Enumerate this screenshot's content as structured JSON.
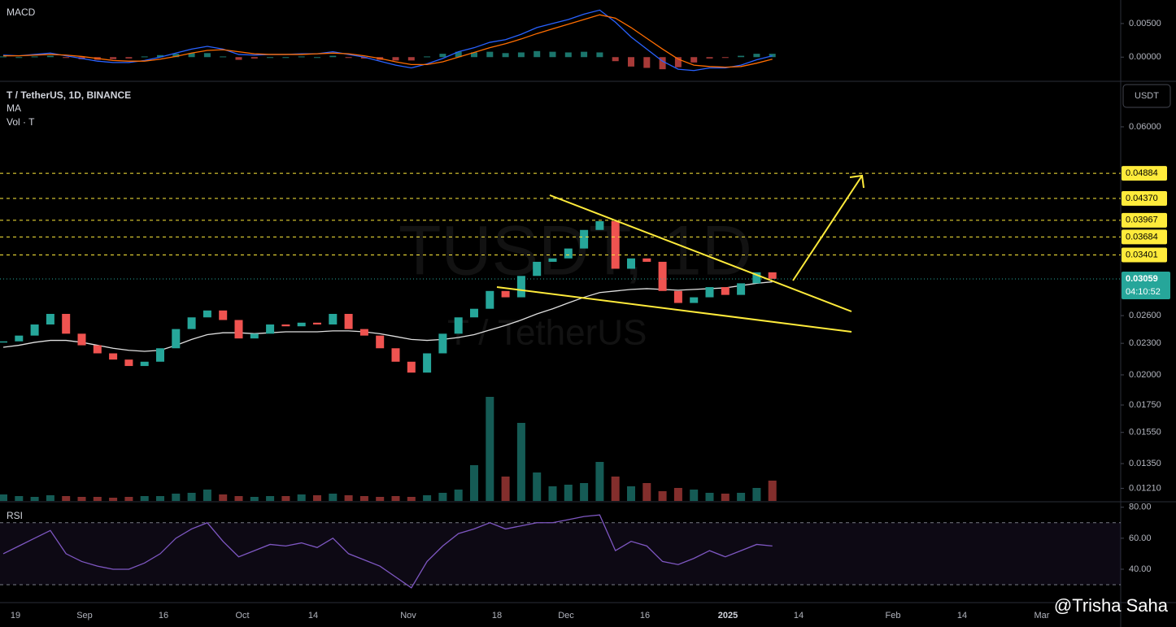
{
  "chart_data": [
    {
      "type": "macd",
      "title": "MACD",
      "macd": {
        "color": "#2962ff",
        "values": [
          0.0003,
          0.0002,
          0.0004,
          0.0006,
          0.0002,
          -0.0002,
          -0.0006,
          -0.0008,
          -0.0008,
          -0.0005,
          0.0,
          0.0006,
          0.0012,
          0.0016,
          0.0012,
          0.0004,
          0.0003,
          0.0004,
          0.0004,
          0.0005,
          0.0005,
          0.0008,
          0.0004,
          0.0,
          -0.0006,
          -0.0012,
          -0.0016,
          -0.001,
          -0.0002,
          0.0008,
          0.0014,
          0.0022,
          0.0026,
          0.0034,
          0.0044,
          0.005,
          0.0056,
          0.0064,
          0.007,
          0.0052,
          0.003,
          0.0012,
          -0.0006,
          -0.0018,
          -0.002,
          -0.0016,
          -0.0016,
          -0.0012,
          -0.0004,
          0.0002
        ]
      },
      "signal": {
        "color": "#ff6d00",
        "values": [
          0.0002,
          0.0002,
          0.0003,
          0.0004,
          0.0003,
          0.0001,
          -0.0002,
          -0.0005,
          -0.0006,
          -0.0006,
          -0.0003,
          0.0001,
          0.0006,
          0.001,
          0.0011,
          0.0008,
          0.0005,
          0.0004,
          0.0004,
          0.0004,
          0.0005,
          0.0006,
          0.0005,
          0.0002,
          -0.0002,
          -0.0007,
          -0.0011,
          -0.0011,
          -0.0007,
          0.0,
          0.0007,
          0.0014,
          0.002,
          0.0027,
          0.0035,
          0.0042,
          0.0049,
          0.0056,
          0.0063,
          0.0058,
          0.0044,
          0.0028,
          0.0012,
          -0.0003,
          -0.0012,
          -0.0014,
          -0.0015,
          -0.0014,
          -0.0009,
          -0.0003
        ]
      },
      "histogram": {
        "up_color": "#26a69a",
        "down_color": "#ef5350",
        "values": [
          0.0001,
          0,
          0.0001,
          0.0002,
          -0.0001,
          -0.0003,
          -0.0004,
          -0.0003,
          -0.0002,
          0.0001,
          0.0003,
          0.0005,
          0.0006,
          0.0006,
          0.0001,
          -0.0004,
          -0.0002,
          0,
          0,
          0.0001,
          0,
          0.0002,
          -0.0001,
          -0.0002,
          -0.0004,
          -0.0005,
          -0.0005,
          0.0001,
          0.0005,
          0.0008,
          0.0007,
          0.0008,
          0.0006,
          0.0007,
          0.0009,
          0.0008,
          0.0007,
          0.0008,
          0.0007,
          -0.0006,
          -0.0014,
          -0.0016,
          -0.0018,
          -0.0015,
          -0.0008,
          -0.0002,
          -0.0001,
          0.0002,
          0.0005,
          0.0005
        ]
      },
      "ylim": [
        -0.0036,
        0.0085
      ],
      "yticks": [
        {
          "value": 0.005,
          "label": "0.00500"
        },
        {
          "value": 0,
          "label": "0.00000"
        }
      ]
    },
    {
      "type": "candlestick",
      "title": "T / TetherUS, 1D, BINANCE",
      "indicators": [
        "MA",
        "Vol · T"
      ],
      "watermark": [
        "TUSDT, 1D",
        "T / TetherUS"
      ],
      "currency": "USDT",
      "up_color": "#26a69a",
      "down_color": "#ef5350",
      "log_scale": true,
      "close": [
        0.0232,
        0.0238,
        0.025,
        0.0262,
        0.024,
        0.0228,
        0.022,
        0.0214,
        0.0208,
        0.0212,
        0.0225,
        0.0245,
        0.0258,
        0.0266,
        0.0255,
        0.0235,
        0.024,
        0.025,
        0.0248,
        0.0252,
        0.025,
        0.0262,
        0.0245,
        0.0238,
        0.0225,
        0.0212,
        0.0202,
        0.022,
        0.024,
        0.0258,
        0.0268,
        0.029,
        0.0282,
        0.031,
        0.033,
        0.0335,
        0.035,
        0.038,
        0.0395,
        0.032,
        0.0335,
        0.033,
        0.029,
        0.0275,
        0.0282,
        0.0295,
        0.0285,
        0.03,
        0.0315,
        0.0306
      ],
      "volume": [
        8,
        6,
        5,
        7,
        6,
        5,
        5,
        4,
        5,
        6,
        6,
        9,
        10,
        14,
        8,
        6,
        5,
        6,
        6,
        8,
        7,
        9,
        7,
        6,
        5,
        6,
        5,
        7,
        10,
        14,
        44,
        128,
        30,
        96,
        35,
        18,
        20,
        22,
        48,
        30,
        18,
        22,
        12,
        16,
        14,
        10,
        9,
        10,
        16,
        25
      ],
      "ma": {
        "color": "#e0e0e0",
        "values": [
          0.0226,
          0.0228,
          0.0231,
          0.0233,
          0.0233,
          0.0231,
          0.0228,
          0.0225,
          0.0223,
          0.0222,
          0.0223,
          0.0228,
          0.0234,
          0.0239,
          0.0241,
          0.0241,
          0.024,
          0.0241,
          0.0242,
          0.0242,
          0.0242,
          0.0243,
          0.0243,
          0.0242,
          0.024,
          0.0237,
          0.0234,
          0.0233,
          0.0234,
          0.0236,
          0.0239,
          0.0244,
          0.0249,
          0.0255,
          0.0262,
          0.0268,
          0.0275,
          0.0282,
          0.0288,
          0.029,
          0.0292,
          0.0293,
          0.0292,
          0.0291,
          0.0292,
          0.0293,
          0.0294,
          0.0297,
          0.03,
          0.0302
        ]
      },
      "ylim": [
        0.0114,
        0.0734
      ],
      "yticks": [
        {
          "value": 0.06,
          "label": "0.06000"
        },
        {
          "value": 0.026,
          "label": "0.02600"
        },
        {
          "value": 0.023,
          "label": "0.02300"
        },
        {
          "value": 0.02,
          "label": "0.02000"
        },
        {
          "value": 0.0175,
          "label": "0.01750"
        },
        {
          "value": 0.0155,
          "label": "0.01550"
        },
        {
          "value": 0.0135,
          "label": "0.01350"
        },
        {
          "value": 0.0121,
          "label": "0.01210"
        }
      ],
      "level_color": "#ffeb3b",
      "levels": [
        0.04884,
        {
          "value": 0.0437,
          "label": "0.04370"
        },
        0.03967,
        0.03684,
        0.03401
      ],
      "last_price": 0.03059,
      "countdown": "04:10:52"
    },
    {
      "type": "rsi",
      "title": "RSI",
      "color": "#7e57c2",
      "values": [
        50,
        55,
        60,
        65,
        50,
        45,
        42,
        40,
        40,
        44,
        50,
        60,
        66,
        70,
        58,
        48,
        52,
        56,
        55,
        57,
        54,
        60,
        50,
        46,
        42,
        35,
        28,
        45,
        55,
        63,
        66,
        70,
        66,
        68,
        70,
        70,
        72,
        74,
        75,
        52,
        58,
        55,
        45,
        43,
        47,
        52,
        48,
        52,
        56,
        55
      ],
      "band": [
        30,
        70
      ],
      "ylim": [
        19,
        83
      ],
      "yticks": [
        {
          "value": 80,
          "label": "80.00"
        },
        {
          "value": 60,
          "label": "60.00"
        },
        {
          "value": 40,
          "label": "40.00"
        }
      ]
    }
  ],
  "time_axis": [
    "19",
    "Sep",
    "16",
    "Oct",
    "14",
    "Nov",
    "18",
    "Dec",
    "16",
    "2025",
    "14",
    "Feb",
    "14",
    "Mar"
  ],
  "credit": "@Trisha Saha"
}
